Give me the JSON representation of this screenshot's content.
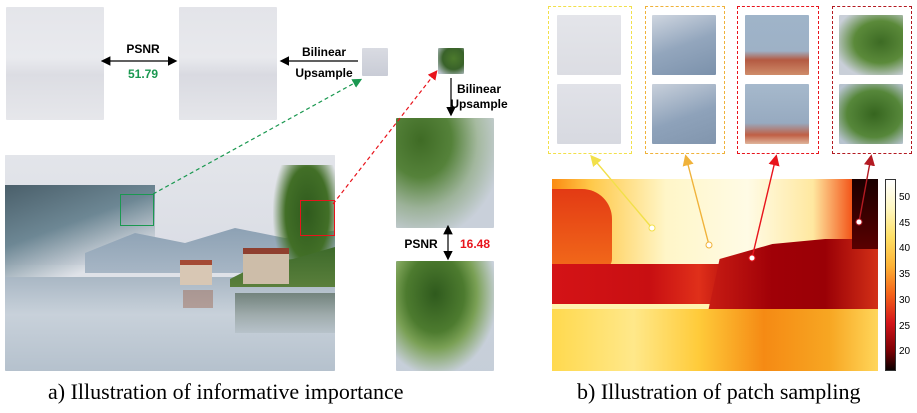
{
  "panel_a": {
    "caption": "a) Illustration of informative importance",
    "psnr_label_top": "PSNR",
    "psnr_value_top": "51.79",
    "psnr_label_bottom": "PSNR",
    "psnr_value_bottom": "16.48",
    "bilinear_top_line1": "Bilinear",
    "bilinear_top_line2": "Upsample",
    "bilinear_right_line1": "Bilinear",
    "bilinear_right_line2": "Upsample",
    "colors": {
      "green": "#1a9850",
      "red": "#e8141c"
    }
  },
  "panel_b": {
    "caption": "b) Illustration of patch sampling",
    "colorbar_ticks": [
      "50",
      "45",
      "40",
      "35",
      "30",
      "25",
      "20"
    ],
    "colors": {
      "yellow_box": "#f2e04a",
      "orange_box": "#f0b23a",
      "red_box": "#e8141c",
      "dark_red_box": "#b31a22"
    }
  }
}
